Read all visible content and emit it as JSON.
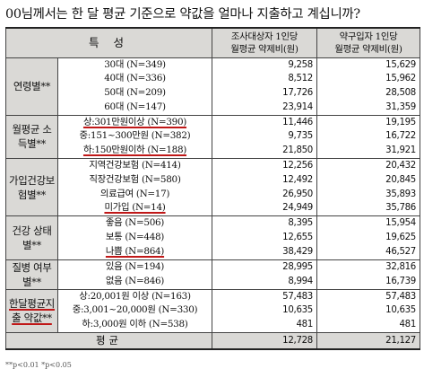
{
  "title": "00님께서는 한 달 평균 기준으로 약값을 얼마나 지출하고 계십니까?",
  "header": {
    "characteristic": "특 성",
    "col1_line1": "조사대상자 1인당",
    "col1_line2": "월평균 약제비(원)",
    "col2_line1": "약구입자 1인당",
    "col2_line2": "월평균 약제비(원)"
  },
  "groups": {
    "age": "연령별**",
    "income": "월평균 소득별**",
    "insurance": "가입건강보험별**",
    "health": "건강 상태별**",
    "disease": "질병 여부별**",
    "spending": "한달평균지출 약값**"
  },
  "rows": [
    {
      "label": "30대 (N=349)",
      "v1": "9,258",
      "v2": "15,629"
    },
    {
      "label": "40대 (N=336)",
      "v1": "8,512",
      "v2": "15,962"
    },
    {
      "label": "50대 (N=209)",
      "v1": "17,726",
      "v2": "28,508"
    },
    {
      "label": "60대 (N=147)",
      "v1": "23,914",
      "v2": "31,359"
    },
    {
      "label": "상:301만원이상 (N=390)",
      "v1": "11,446",
      "v2": "19,195"
    },
    {
      "label": "중:151~300만원 (N=382)",
      "v1": "9,735",
      "v2": "16,722"
    },
    {
      "label": "하:150만원이하 (N=188)",
      "v1": "21,850",
      "v2": "31,921"
    },
    {
      "label": "지역건강보험 (N=414)",
      "v1": "12,256",
      "v2": "20,432"
    },
    {
      "label": "직장건강보험 (N=580)",
      "v1": "12,492",
      "v2": "20,845"
    },
    {
      "label": "의료급여 (N=17)",
      "v1": "26,950",
      "v2": "35,893"
    },
    {
      "label": "미가입 (N=14)",
      "v1": "24,949",
      "v2": "35,786"
    },
    {
      "label": "좋음 (N=506)",
      "v1": "8,395",
      "v2": "15,954"
    },
    {
      "label": "보통 (N=448)",
      "v1": "12,655",
      "v2": "19,625"
    },
    {
      "label": "나쁨 (N=864)",
      "v1": "38,429",
      "v2": "46,527"
    },
    {
      "label": "있음 (N=194)",
      "v1": "28,995",
      "v2": "32,816"
    },
    {
      "label": "없음 (N=846)",
      "v1": "8,994",
      "v2": "16,739"
    },
    {
      "label": "상:20,001원 이상 (N=163)",
      "v1": "57,483",
      "v2": "57,483"
    },
    {
      "label": "중:3,001~20,000원 (N=330)",
      "v1": "10,635",
      "v2": "10,635"
    },
    {
      "label": "하:3,000원 이하 (N=538)",
      "v1": "481",
      "v2": "481"
    }
  ],
  "average": {
    "label": "평균",
    "v1": "12,728",
    "v2": "21,127"
  },
  "footnote": "**p<0.01 *p<0.05"
}
